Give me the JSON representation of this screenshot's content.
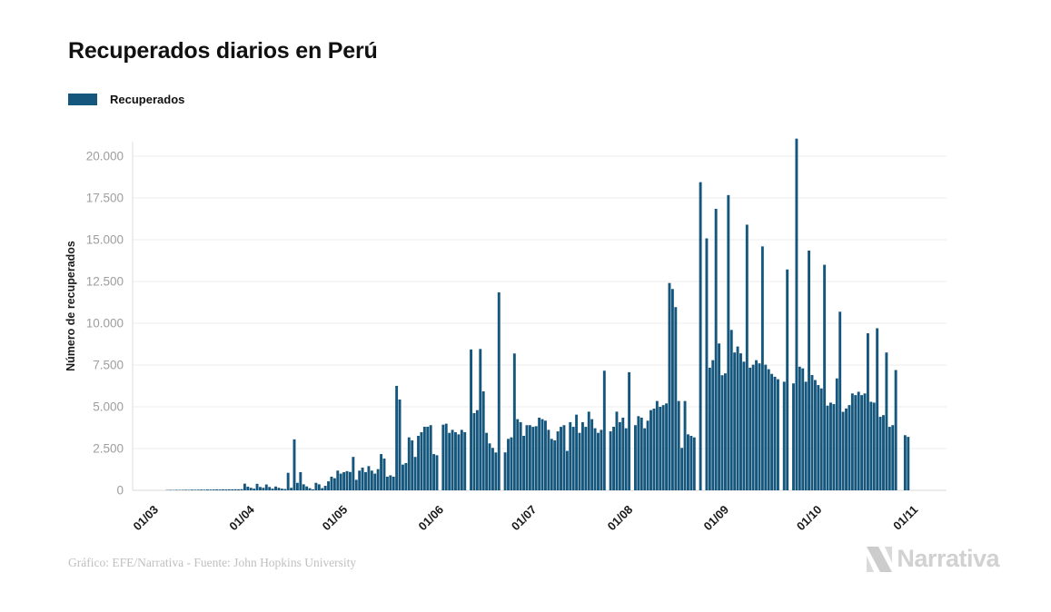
{
  "header": {
    "title": "Recuperados diarios en Perú"
  },
  "legend": {
    "items": [
      {
        "label": "Recuperados",
        "color": "#15567d"
      }
    ]
  },
  "chart_data": {
    "type": "bar",
    "title": "Recuperados diarios en Perú",
    "xlabel": "",
    "ylabel": "Número de recuperados",
    "bar_color": "#15567d",
    "grid": true,
    "legend_position": "top-left",
    "ylim": [
      0,
      21500
    ],
    "y_ticks": [
      {
        "value": 0,
        "label": "0"
      },
      {
        "value": 2500,
        "label": "2.500"
      },
      {
        "value": 5000,
        "label": "5.000"
      },
      {
        "value": 7500,
        "label": "7.500"
      },
      {
        "value": 10000,
        "label": "10.000"
      },
      {
        "value": 12500,
        "label": "12.500"
      },
      {
        "value": 15000,
        "label": "15.000"
      },
      {
        "value": 17500,
        "label": "17.500"
      },
      {
        "value": 20000,
        "label": "20.000"
      }
    ],
    "x_ticks": [
      {
        "label": "01/03",
        "day": 0
      },
      {
        "label": "01/04",
        "day": 31
      },
      {
        "label": "01/05",
        "day": 61
      },
      {
        "label": "01/06",
        "day": 92
      },
      {
        "label": "01/07",
        "day": 122
      },
      {
        "label": "01/08",
        "day": 153
      },
      {
        "label": "01/09",
        "day": 184
      },
      {
        "label": "01/10",
        "day": 214
      },
      {
        "label": "01/11",
        "day": 245
      }
    ],
    "series": [
      {
        "name": "Recuperados",
        "unit": "recuperados por día (01/03 a 01/11)",
        "values": [
          0,
          0,
          0,
          0,
          0,
          20,
          25,
          20,
          30,
          25,
          30,
          35,
          30,
          40,
          35,
          40,
          45,
          40,
          50,
          45,
          50,
          55,
          50,
          60,
          55,
          60,
          60,
          65,
          60,
          70,
          400,
          220,
          150,
          100,
          390,
          200,
          150,
          350,
          200,
          100,
          230,
          150,
          100,
          80,
          1050,
          150,
          3050,
          450,
          1090,
          360,
          235,
          130,
          60,
          450,
          360,
          130,
          270,
          540,
          815,
          725,
          1180,
          1000,
          1090,
          1150,
          1100,
          2000,
          630,
          1180,
          1360,
          1090,
          1450,
          1180,
          1000,
          1270,
          2170,
          1900,
          815,
          900,
          815,
          6250,
          5435,
          1540,
          1630,
          3170,
          2990,
          2000,
          3260,
          3480,
          3805,
          3805,
          3900,
          2170,
          2100,
          0,
          3930,
          3990,
          3440,
          3620,
          3480,
          3350,
          3620,
          3480,
          0,
          8430,
          4620,
          4800,
          8460,
          5925,
          3440,
          2810,
          2540,
          2265,
          11850,
          0,
          2270,
          3080,
          3170,
          8190,
          4260,
          4080,
          3260,
          3900,
          3900,
          3800,
          3840,
          4350,
          4260,
          4170,
          3620,
          3080,
          2990,
          3530,
          3800,
          3900,
          2360,
          4080,
          3800,
          4530,
          3440,
          4080,
          3800,
          4710,
          4260,
          3715,
          3440,
          3620,
          7160,
          0,
          3530,
          3805,
          4710,
          4080,
          4350,
          3715,
          7070,
          0,
          3900,
          4440,
          4350,
          3715,
          4170,
          4800,
          4890,
          5345,
          5000,
          5100,
          5200,
          12410,
          12050,
          10965,
          5345,
          2540,
          5345,
          3350,
          3260,
          3170,
          0,
          18445,
          0,
          15080,
          7340,
          7790,
          16850,
          8790,
          6890,
          7000,
          17670,
          9600,
          8250,
          8610,
          8200,
          7700,
          15900,
          7340,
          7520,
          7790,
          7600,
          14600,
          7520,
          7250,
          6970,
          6800,
          6650,
          0,
          6500,
          13220,
          0,
          6400,
          21050,
          7400,
          7300,
          6500,
          14350,
          6900,
          6600,
          6300,
          6100,
          13500,
          5070,
          5250,
          5160,
          6700,
          10690,
          4700,
          4900,
          5100,
          5800,
          5700,
          5900,
          5700,
          5800,
          9400,
          5300,
          5250,
          9700,
          4400,
          4500,
          8250,
          3800,
          3900,
          7200,
          0,
          0,
          3300,
          3200
        ]
      }
    ]
  },
  "footer": {
    "credit": "Gráfico: EFE/Narrativa - Fuente: John Hopkins University",
    "logo_text": "Narrativa"
  }
}
